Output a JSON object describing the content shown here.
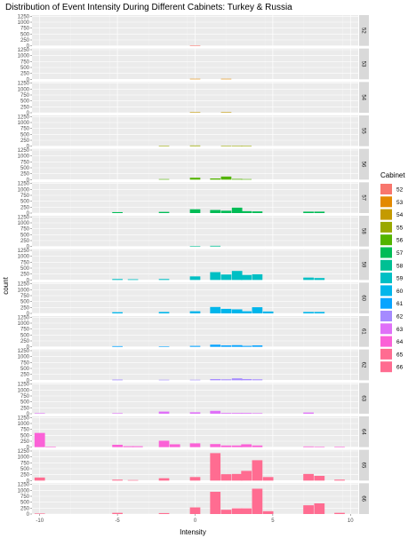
{
  "chart_data": {
    "type": "bar",
    "title": "Distribution of Event Intensity During Different Cabinets: Turkey & Russia",
    "xlabel": "Intensity",
    "ylabel": "count",
    "xlim": [
      -10.5,
      10.5
    ],
    "ylim": [
      0,
      1300
    ],
    "x_ticks": [
      -10,
      -5,
      0,
      5,
      10
    ],
    "y_ticks": [
      0,
      250,
      500,
      750,
      1000,
      1250
    ],
    "bin_width": 0.67,
    "grid": true,
    "facet_by": "Cabinet",
    "legend": {
      "title": "Cabinet",
      "position": "right"
    },
    "series": [
      {
        "name": "52",
        "color": "#F8766D",
        "bins": [
          [
            0,
            15
          ]
        ]
      },
      {
        "name": "53",
        "color": "#E38900",
        "bins": [
          [
            0,
            5
          ],
          [
            2,
            5
          ]
        ]
      },
      {
        "name": "54",
        "color": "#C49A00",
        "bins": [
          [
            0,
            5
          ],
          [
            2,
            20
          ]
        ]
      },
      {
        "name": "55",
        "color": "#99A800",
        "bins": [
          [
            -2,
            5
          ],
          [
            0,
            30
          ],
          [
            2,
            20
          ],
          [
            2.7,
            20
          ],
          [
            3.3,
            10
          ]
        ]
      },
      {
        "name": "56",
        "color": "#53B400",
        "bins": [
          [
            -2,
            5
          ],
          [
            0,
            80
          ],
          [
            1.3,
            50
          ],
          [
            2,
            130
          ],
          [
            2.7,
            30
          ],
          [
            3.3,
            10
          ]
        ]
      },
      {
        "name": "57",
        "color": "#00BC56",
        "bins": [
          [
            -5,
            40
          ],
          [
            -2,
            50
          ],
          [
            0,
            160
          ],
          [
            1.3,
            130
          ],
          [
            2,
            100
          ],
          [
            2.7,
            230
          ],
          [
            3.3,
            80
          ],
          [
            4,
            70
          ],
          [
            7.3,
            60
          ],
          [
            8,
            60
          ]
        ]
      },
      {
        "name": "58",
        "color": "#00C094",
        "bins": [
          [
            0,
            20
          ],
          [
            1.3,
            30
          ]
        ]
      },
      {
        "name": "59",
        "color": "#00BFC4",
        "bins": [
          [
            -5,
            40
          ],
          [
            -4,
            30
          ],
          [
            -2,
            40
          ],
          [
            0,
            150
          ],
          [
            1.3,
            330
          ],
          [
            2,
            230
          ],
          [
            2.7,
            380
          ],
          [
            3.3,
            210
          ],
          [
            4,
            240
          ],
          [
            7.3,
            100
          ],
          [
            8,
            80
          ]
        ]
      },
      {
        "name": "60",
        "color": "#00B6EB",
        "bins": [
          [
            -5,
            50
          ],
          [
            -2,
            60
          ],
          [
            0,
            90
          ],
          [
            1.3,
            270
          ],
          [
            2,
            190
          ],
          [
            2.7,
            170
          ],
          [
            3.3,
            90
          ],
          [
            4,
            260
          ],
          [
            4.7,
            80
          ],
          [
            7.3,
            60
          ],
          [
            8,
            60
          ]
        ]
      },
      {
        "name": "61",
        "color": "#06A4FF",
        "bins": [
          [
            -5,
            30
          ],
          [
            -2,
            20
          ],
          [
            0,
            40
          ],
          [
            1.3,
            90
          ],
          [
            2,
            60
          ],
          [
            2.7,
            70
          ],
          [
            3.3,
            40
          ],
          [
            4,
            60
          ]
        ]
      },
      {
        "name": "62",
        "color": "#A58AFF",
        "bins": [
          [
            -5,
            30
          ],
          [
            -2,
            20
          ],
          [
            0,
            10
          ],
          [
            1.3,
            50
          ],
          [
            2,
            40
          ],
          [
            2.7,
            80
          ],
          [
            3.3,
            50
          ],
          [
            4,
            40
          ]
        ]
      },
      {
        "name": "63",
        "color": "#DF70F8",
        "bins": [
          [
            -10,
            10
          ],
          [
            -5,
            20
          ],
          [
            -2,
            90
          ],
          [
            0,
            60
          ],
          [
            1.3,
            120
          ],
          [
            2,
            30
          ],
          [
            2.7,
            30
          ],
          [
            3.3,
            30
          ],
          [
            4,
            20
          ],
          [
            7.3,
            50
          ]
        ]
      },
      {
        "name": "64",
        "color": "#FB61D7",
        "bins": [
          [
            -10,
            600
          ],
          [
            -9.3,
            15
          ],
          [
            -5,
            100
          ],
          [
            -4.3,
            40
          ],
          [
            -3.7,
            40
          ],
          [
            -2,
            270
          ],
          [
            -1.3,
            120
          ],
          [
            0,
            160
          ],
          [
            1.3,
            130
          ],
          [
            2,
            70
          ],
          [
            2.7,
            70
          ],
          [
            3.3,
            120
          ],
          [
            4,
            70
          ],
          [
            7.3,
            30
          ],
          [
            8,
            20
          ],
          [
            9.3,
            10
          ]
        ]
      },
      {
        "name": "65",
        "color": "#FF6C91",
        "bins": [
          [
            -10,
            130
          ],
          [
            -5,
            40
          ],
          [
            -4,
            20
          ],
          [
            -2,
            100
          ],
          [
            0,
            150
          ],
          [
            1.3,
            1160
          ],
          [
            2,
            270
          ],
          [
            2.7,
            280
          ],
          [
            3.3,
            410
          ],
          [
            4,
            860
          ],
          [
            4.7,
            150
          ],
          [
            7.3,
            280
          ],
          [
            8,
            200
          ],
          [
            9.3,
            40
          ]
        ]
      },
      {
        "name": "66",
        "color": "#FF6C91",
        "bins": [
          [
            -10,
            20
          ],
          [
            -5,
            50
          ],
          [
            -2,
            40
          ],
          [
            0,
            280
          ],
          [
            1.3,
            940
          ],
          [
            2,
            180
          ],
          [
            2.7,
            240
          ],
          [
            3.3,
            240
          ],
          [
            4,
            1070
          ],
          [
            4.7,
            120
          ],
          [
            7.3,
            370
          ],
          [
            8,
            450
          ],
          [
            9.3,
            50
          ]
        ]
      }
    ]
  }
}
